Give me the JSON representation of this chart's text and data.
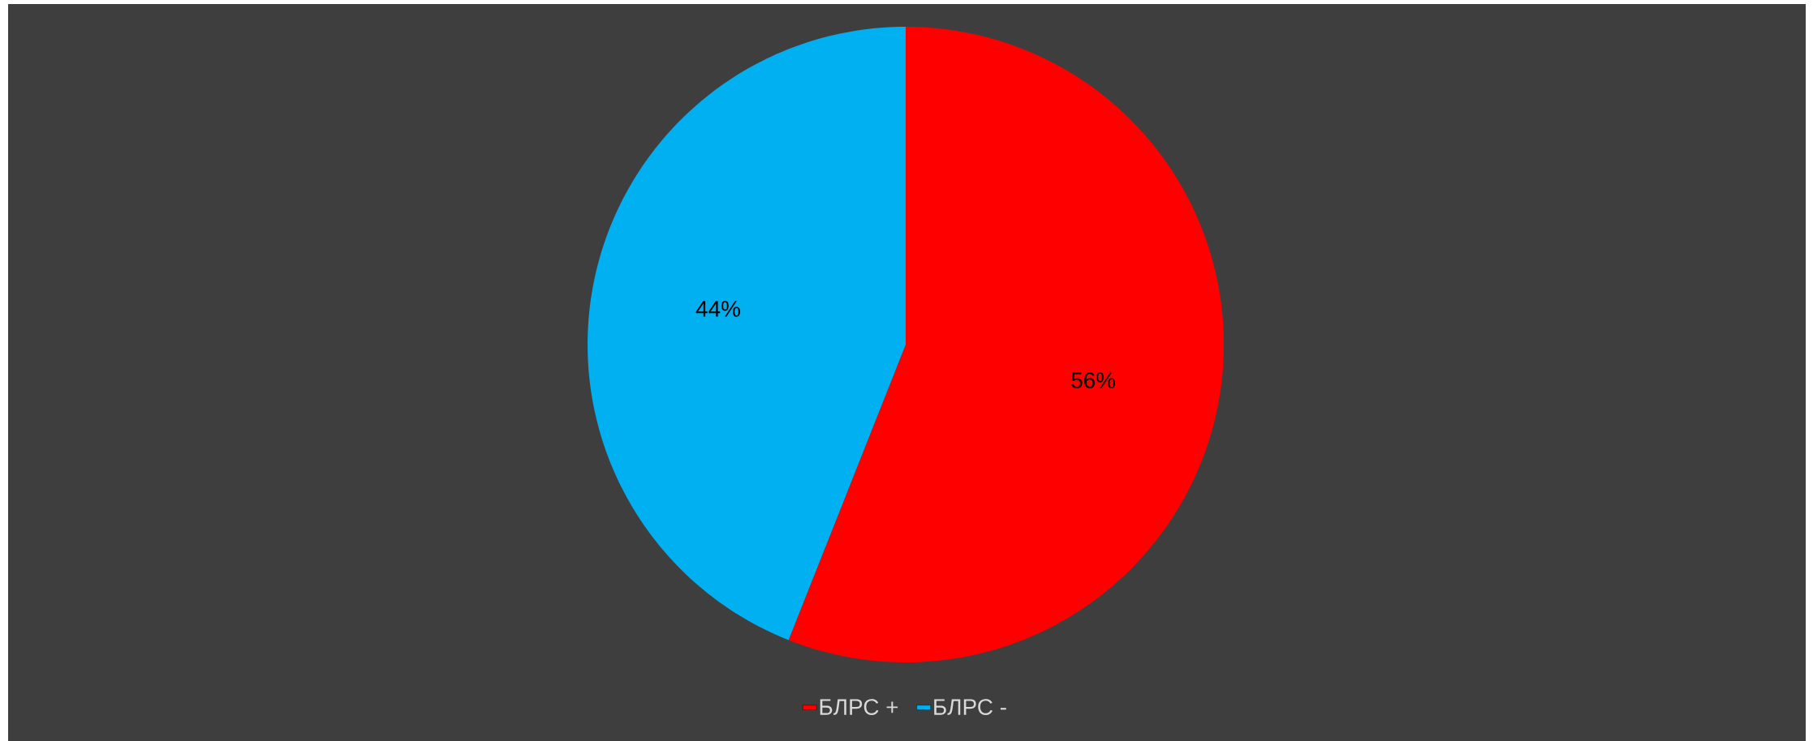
{
  "chart_data": {
    "type": "pie",
    "categories": [
      "БЛРС +",
      "БЛРС -"
    ],
    "values": [
      56,
      44
    ],
    "colors": [
      "#ff0000",
      "#00b0f0"
    ],
    "value_labels": [
      "56%",
      "44%"
    ],
    "legend": "bottom"
  }
}
